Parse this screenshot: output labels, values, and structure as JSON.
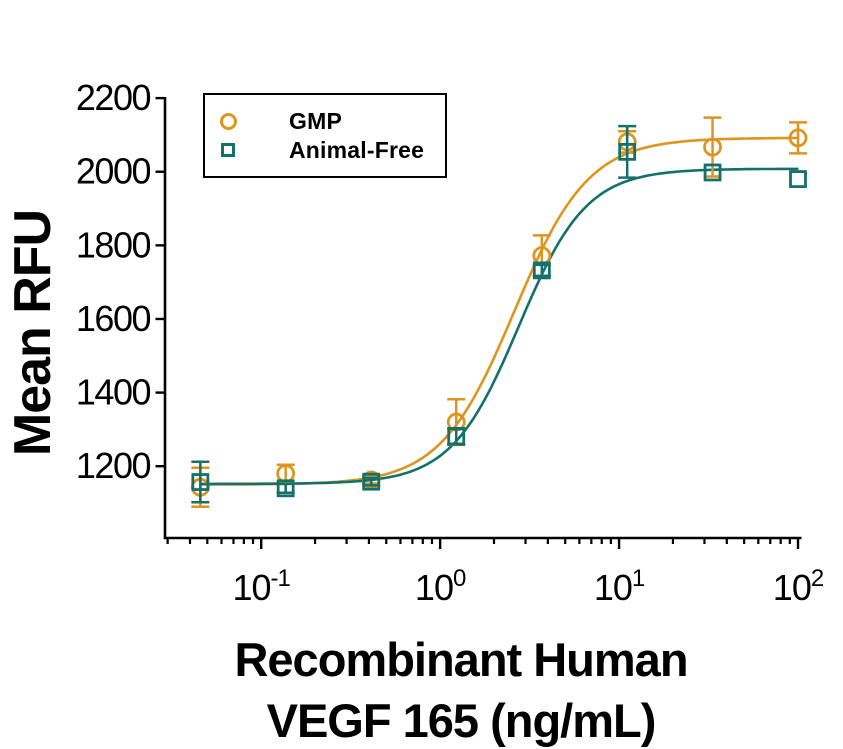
{
  "legend": {
    "items": [
      {
        "label": "GMP",
        "marker": "circle",
        "color": "#DE951F"
      },
      {
        "label": "Animal-Free",
        "marker": "square",
        "color": "#14706A"
      }
    ]
  },
  "axes": {
    "y": {
      "label": "Mean RFU",
      "tick_values": [
        1200,
        1400,
        1600,
        1800,
        2000,
        2200
      ],
      "min": 1005,
      "max": 2203,
      "grid": false
    },
    "x": {
      "title_line1": "Recombinant Human",
      "title_line2": "VEGF 165 (ng/mL)",
      "scale": "log10",
      "major_tick_exponents": [
        -1,
        0,
        1,
        2
      ],
      "tick_label_base": "10",
      "min": 0.029,
      "max": 102.6,
      "grid": false
    }
  },
  "chart_data": {
    "type": "scatter",
    "curve_model": "4PL sigmoid dose-response",
    "x_values": [
      0.0457,
      0.137,
      0.412,
      1.23,
      3.7,
      11.1,
      33.3,
      100
    ],
    "series": [
      {
        "name": "GMP",
        "marker": "circle",
        "color": "#DE951F",
        "values": [
          1143,
          1180,
          1163,
          1320,
          1772,
          2081,
          2067,
          2092
        ],
        "errors": [
          53,
          24,
          10,
          62,
          55,
          29,
          80,
          42
        ],
        "fit": {
          "bottom": 1150,
          "top": 2092,
          "ec50": 2.6,
          "hill": 2.1
        }
      },
      {
        "name": "Animal-Free",
        "marker": "square",
        "color": "#14706A",
        "values": [
          1157,
          1140,
          1158,
          1281,
          1732,
          2054,
          1998,
          1980
        ],
        "errors": [
          55,
          12,
          10,
          22,
          15,
          70,
          0,
          0
        ],
        "fit": {
          "bottom": 1152,
          "top": 2008,
          "ec50": 2.75,
          "hill": 2.3
        }
      }
    ]
  }
}
